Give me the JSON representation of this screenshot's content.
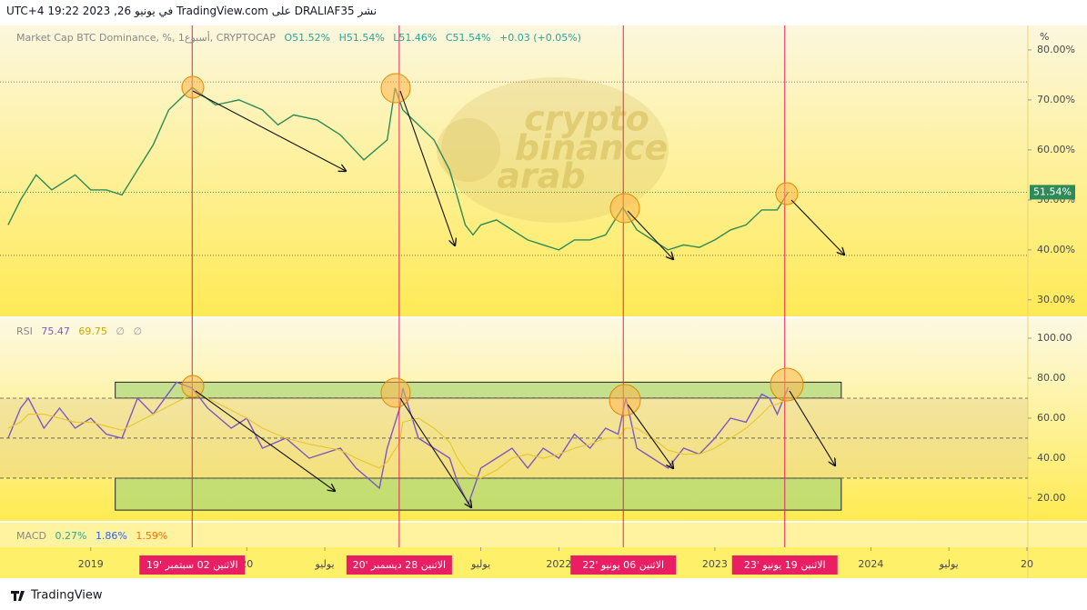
{
  "header": "نشر DRALIAF35 على TradingView.com في يونيو 26, 2023 19:22 UTC+4",
  "legend": {
    "symbol": "Market Cap BTC Dominance, %, 1أسبوع, CRYPTOCAP",
    "open": "O51.52%",
    "high": "H51.54%",
    "low": "L51.46%",
    "close": "C51.54%",
    "change": "+0.03 (+0.05%)",
    "unit": "%"
  },
  "watermark": [
    "crypto",
    "binance",
    "arab"
  ],
  "chart_data": [
    {
      "type": "line",
      "x": [
        2018.47,
        2018.55,
        2018.65,
        2018.75,
        2018.9,
        2019.0,
        2019.1,
        2019.2,
        2019.3,
        2019.4,
        2019.5,
        2019.6,
        2019.65,
        2019.8,
        2019.95,
        2020.1,
        2020.2,
        2020.3,
        2020.45,
        2020.6,
        2020.75,
        2020.9,
        2020.95,
        2021.0,
        2021.1,
        2021.2,
        2021.3,
        2021.4,
        2021.45,
        2021.5,
        2021.6,
        2021.7,
        2021.8,
        2021.9,
        2022.0,
        2022.1,
        2022.2,
        2022.3,
        2022.41,
        2022.5,
        2022.6,
        2022.7,
        2022.8,
        2022.9,
        2023.0,
        2023.1,
        2023.2,
        2023.3,
        2023.4,
        2023.47
      ],
      "series": [
        {
          "color": "#2e8b57",
          "values": [
            45,
            50,
            55,
            52,
            55,
            52,
            52,
            51,
            56,
            61,
            68,
            71,
            72.5,
            69,
            70,
            68,
            65,
            67,
            66,
            63,
            58,
            62,
            72.4,
            68,
            65,
            62,
            56,
            45,
            43,
            45,
            46,
            44,
            42,
            41,
            40,
            42,
            42,
            43,
            48.5,
            44,
            42,
            40,
            41,
            40.5,
            42,
            44,
            45,
            48,
            48,
            51.54
          ]
        }
      ],
      "last": {
        "value": 51.54,
        "label": "51.54%"
      },
      "hlines": [
        73.6,
        38.9
      ],
      "xlim": [
        2018.465,
        2025.006
      ],
      "xticks": [
        2019,
        {
          "value": 2020,
          "label": "20"
        },
        {
          "value": 2020.5,
          "label": "يوليو"
        },
        {
          "value": 2021.5,
          "label": "يوليو"
        },
        2022,
        2023,
        2024,
        {
          "value": 2024.5,
          "label": "يوليو"
        },
        {
          "value": 2025,
          "label": "20"
        }
      ],
      "ylim": [
        26.7,
        84.9
      ],
      "yticks": [
        {
          "value": 30,
          "label": "30.00%"
        },
        {
          "value": 40,
          "label": "40.00%"
        },
        {
          "value": 50,
          "label": "50.00%"
        },
        {
          "value": 60,
          "label": "60.00%"
        },
        {
          "value": 70,
          "label": "70.00%"
        },
        {
          "value": 80,
          "label": "80.00%"
        }
      ],
      "markers": [
        {
          "x": 2019.65,
          "label": "الاثنين 02 سبتمبر '19"
        },
        {
          "x": 2020.977,
          "label": "الاثنين 28 ديسمبر '20"
        },
        {
          "x": 2022.413,
          "label": "الاثنين 06 يونيو '22"
        },
        {
          "x": 2023.448,
          "label": "الاثنين 19 يونيو '23"
        }
      ]
    },
    {
      "type": "line",
      "title": "RSI",
      "readout": [
        "75.47",
        "69.75",
        "∅",
        "∅"
      ],
      "x": [
        2018.47,
        2018.55,
        2018.6,
        2018.7,
        2018.8,
        2018.9,
        2019.0,
        2019.1,
        2019.2,
        2019.3,
        2019.4,
        2019.55,
        2019.65,
        2019.75,
        2019.9,
        2020.0,
        2020.1,
        2020.25,
        2020.4,
        2020.6,
        2020.7,
        2020.85,
        2020.9,
        2020.98,
        2021.0,
        2021.1,
        2021.2,
        2021.3,
        2021.35,
        2021.42,
        2021.5,
        2021.6,
        2021.7,
        2021.8,
        2021.9,
        2022.0,
        2022.1,
        2022.2,
        2022.3,
        2022.38,
        2022.43,
        2022.5,
        2022.6,
        2022.7,
        2022.8,
        2022.9,
        2023.0,
        2023.1,
        2023.2,
        2023.3,
        2023.35,
        2023.4,
        2023.47
      ],
      "series": [
        {
          "color": "#7e57c2",
          "values": [
            50,
            65,
            70,
            55,
            65,
            55,
            60,
            52,
            50,
            70,
            62,
            78,
            75,
            65,
            55,
            60,
            45,
            50,
            40,
            45,
            35,
            25,
            45,
            65,
            75,
            50,
            45,
            40,
            28,
            17,
            35,
            40,
            45,
            35,
            45,
            40,
            52,
            45,
            55,
            52,
            70,
            45,
            40,
            35,
            45,
            42,
            50,
            60,
            58,
            72,
            70,
            62,
            75.47
          ]
        },
        {
          "color": "#e8c62c",
          "values": [
            55,
            58,
            62,
            62,
            60,
            58,
            58,
            56,
            54,
            58,
            62,
            68,
            72,
            70,
            64,
            60,
            55,
            50,
            47,
            44,
            40,
            35,
            38,
            48,
            58,
            60,
            55,
            48,
            40,
            32,
            30,
            34,
            40,
            42,
            40,
            42,
            45,
            47,
            50,
            50,
            55,
            55,
            50,
            44,
            42,
            42,
            45,
            50,
            55,
            62,
            66,
            67,
            69.75
          ]
        }
      ],
      "hlines": [
        70,
        50,
        30
      ],
      "zones": [
        {
          "x": [
            2019.157,
            2023.81
          ],
          "y": [
            70,
            78
          ]
        },
        {
          "x": [
            2019.157,
            2023.81
          ],
          "y": [
            14,
            30
          ]
        }
      ],
      "ylim": [
        8.6,
        109.1
      ],
      "yticks": [
        {
          "value": 20,
          "label": "20.00"
        },
        {
          "value": 40,
          "label": "40.00"
        },
        {
          "value": 60,
          "label": "60.00"
        },
        {
          "value": 80,
          "label": "80.00"
        },
        {
          "value": 100,
          "label": "100.00"
        }
      ]
    }
  ],
  "macd": {
    "title": "MACD",
    "readout": [
      "0.27%",
      "1.86%",
      "1.59%"
    ]
  },
  "footer": "TradingView"
}
